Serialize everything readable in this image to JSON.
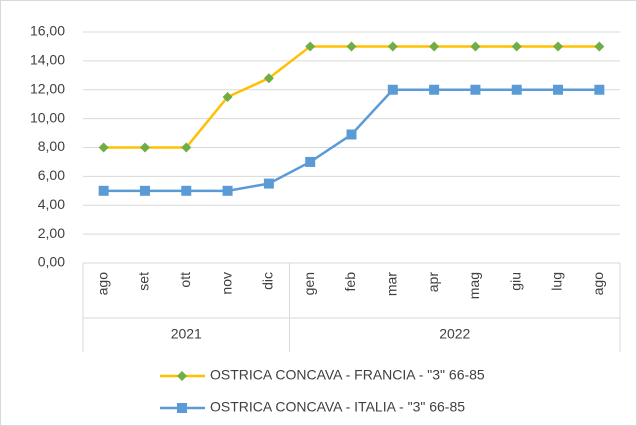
{
  "chart_data": {
    "type": "line",
    "categories": [
      "ago",
      "set",
      "ott",
      "nov",
      "dic",
      "gen",
      "feb",
      "mar",
      "apr",
      "mag",
      "giu",
      "lug",
      "ago"
    ],
    "x_groups": [
      {
        "label": "2021",
        "count": 5
      },
      {
        "label": "2022",
        "count": 8
      }
    ],
    "series": [
      {
        "name": "OSTRICA CONCAVA - FRANCIA - \"3\" 66-85",
        "color": "#ffc000",
        "marker_color": "#70ad47",
        "marker": "diamond",
        "values": [
          8,
          8,
          8,
          11.5,
          12.8,
          15,
          15,
          15,
          15,
          15,
          15,
          15,
          15
        ]
      },
      {
        "name": "OSTRICA CONCAVA - ITALIA - \"3\" 66-85",
        "color": "#5b9bd5",
        "marker_color": "#5b9bd5",
        "marker": "square",
        "values": [
          5,
          5,
          5,
          5,
          5.5,
          7,
          8.9,
          12,
          12,
          12,
          12,
          12,
          12
        ]
      }
    ],
    "ylim": [
      0,
      16
    ],
    "yticks": [
      {
        "value": 0,
        "label": "0,00"
      },
      {
        "value": 2,
        "label": "2,00"
      },
      {
        "value": 4,
        "label": "4,00"
      },
      {
        "value": 6,
        "label": "6,00"
      },
      {
        "value": 8,
        "label": "8,00"
      },
      {
        "value": 10,
        "label": "10,00"
      },
      {
        "value": 12,
        "label": "12,00"
      },
      {
        "value": 14,
        "label": "14,00"
      },
      {
        "value": 16,
        "label": "16,00"
      }
    ],
    "grid": true,
    "legend": "bottom"
  }
}
